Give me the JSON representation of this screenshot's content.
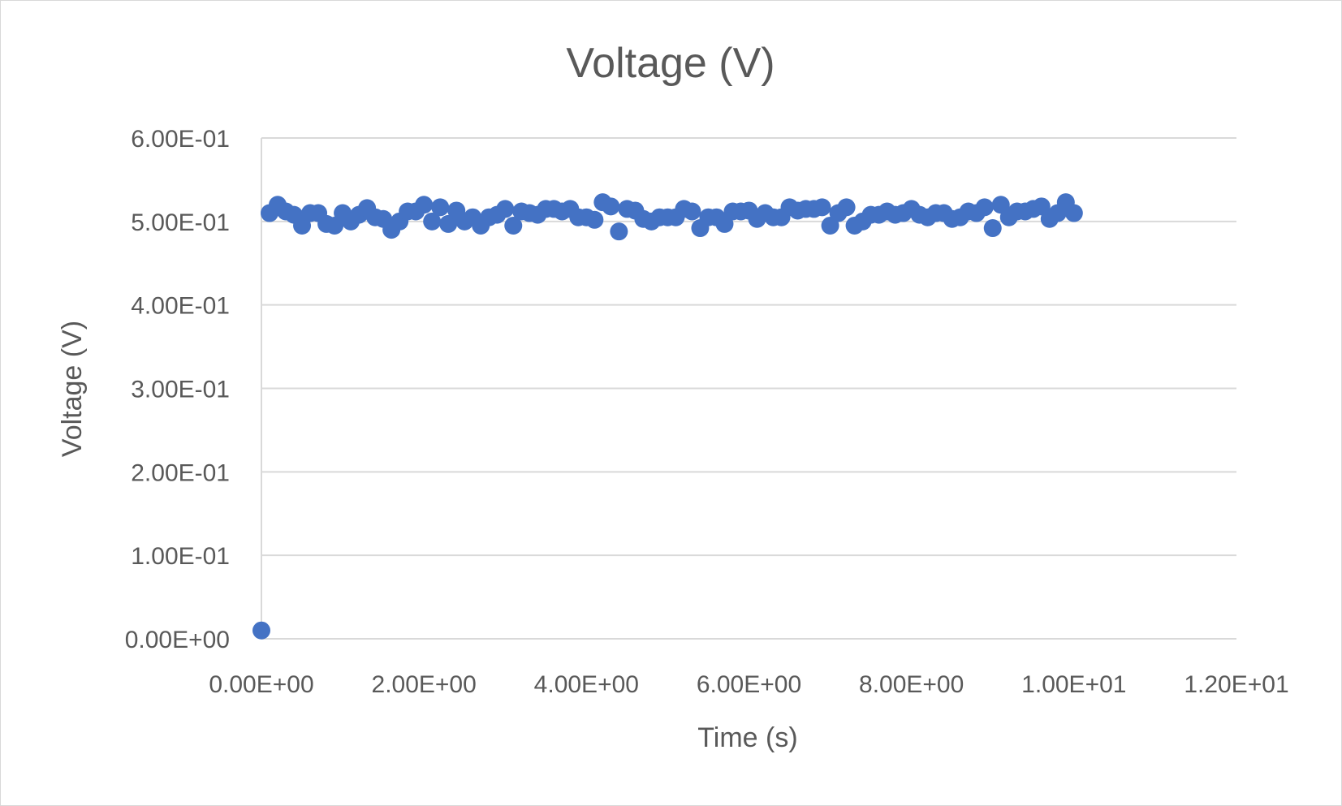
{
  "chart_data": {
    "type": "scatter",
    "title": "Voltage (V)",
    "xlabel": "Time (s)",
    "ylabel": "Voltage (V)",
    "xlim": [
      0,
      12
    ],
    "ylim": [
      0,
      0.6
    ],
    "x_ticks": [
      0,
      2,
      4,
      6,
      8,
      10,
      12
    ],
    "y_ticks": [
      0,
      0.1,
      0.2,
      0.3,
      0.4,
      0.5,
      0.6
    ],
    "x_tick_labels": [
      "0.00E+00",
      "2.00E+00",
      "4.00E+00",
      "6.00E+00",
      "8.00E+00",
      "1.00E+01",
      "1.20E+01"
    ],
    "y_tick_labels": [
      "0.00E+00",
      "1.00E-01",
      "2.00E-01",
      "3.00E-01",
      "4.00E-01",
      "5.00E-01",
      "6.00E-01"
    ],
    "grid": true,
    "legend": "none",
    "marker_color": "#4472c4",
    "series": [
      {
        "x": [
          0.0,
          0.1,
          0.2,
          0.3,
          0.4,
          0.5,
          0.6,
          0.7,
          0.8,
          0.9,
          1.0,
          1.1,
          1.2,
          1.3,
          1.4,
          1.5,
          1.6,
          1.7,
          1.8,
          1.9,
          2.0,
          2.1,
          2.2,
          2.3,
          2.4,
          2.5,
          2.6,
          2.7,
          2.8,
          2.9,
          3.0,
          3.1,
          3.2,
          3.3,
          3.4,
          3.5,
          3.6,
          3.7,
          3.8,
          3.9,
          4.0,
          4.1,
          4.2,
          4.3,
          4.4,
          4.5,
          4.6,
          4.7,
          4.8,
          4.9,
          5.0,
          5.1,
          5.2,
          5.3,
          5.4,
          5.5,
          5.6,
          5.7,
          5.8,
          5.9,
          6.0,
          6.1,
          6.2,
          6.3,
          6.4,
          6.5,
          6.6,
          6.7,
          6.8,
          6.9,
          7.0,
          7.1,
          7.2,
          7.3,
          7.4,
          7.5,
          7.6,
          7.7,
          7.8,
          7.9,
          8.0,
          8.1,
          8.2,
          8.3,
          8.4,
          8.5,
          8.6,
          8.7,
          8.8,
          8.9,
          9.0,
          9.1,
          9.2,
          9.3,
          9.4,
          9.5,
          9.6,
          9.7,
          9.8,
          9.9,
          10.0
        ],
        "y": [
          0.01,
          0.51,
          0.52,
          0.512,
          0.508,
          0.495,
          0.51,
          0.51,
          0.497,
          0.495,
          0.51,
          0.5,
          0.508,
          0.516,
          0.505,
          0.503,
          0.49,
          0.5,
          0.512,
          0.512,
          0.52,
          0.5,
          0.517,
          0.497,
          0.513,
          0.5,
          0.505,
          0.495,
          0.505,
          0.508,
          0.515,
          0.495,
          0.512,
          0.51,
          0.508,
          0.515,
          0.515,
          0.512,
          0.515,
          0.505,
          0.505,
          0.502,
          0.523,
          0.518,
          0.488,
          0.515,
          0.513,
          0.503,
          0.5,
          0.505,
          0.505,
          0.505,
          0.515,
          0.512,
          0.492,
          0.505,
          0.505,
          0.497,
          0.512,
          0.512,
          0.513,
          0.503,
          0.51,
          0.505,
          0.505,
          0.517,
          0.513,
          0.515,
          0.515,
          0.517,
          0.495,
          0.51,
          0.517,
          0.495,
          0.5,
          0.508,
          0.508,
          0.512,
          0.508,
          0.51,
          0.515,
          0.508,
          0.505,
          0.51,
          0.51,
          0.503,
          0.505,
          0.512,
          0.51,
          0.517,
          0.492,
          0.52,
          0.505,
          0.512,
          0.512,
          0.515,
          0.518,
          0.503,
          0.51,
          0.523,
          0.51
        ]
      }
    ]
  }
}
